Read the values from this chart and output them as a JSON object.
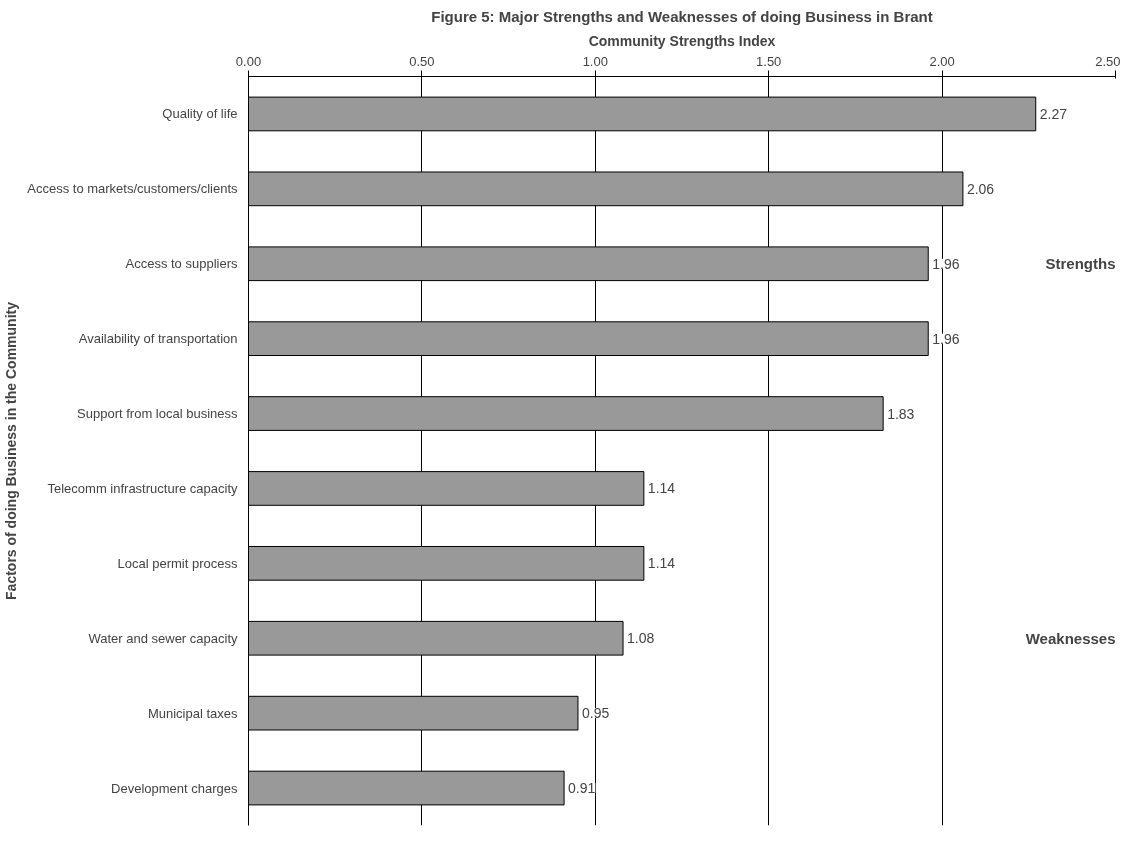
{
  "chart_data": {
    "type": "bar",
    "orientation": "horizontal",
    "title": "Figure 5: Major Strengths and Weaknesses of doing Business in Brant",
    "xlabel": "Community Strengths Index",
    "ylabel": "Factors of doing Business in the Community",
    "categories": [
      "Quality of life",
      "Access to markets/customers/clients",
      "Access to suppliers",
      "Availability of transportation",
      "Support from local business",
      "Telecomm infrastructure capacity",
      "Local permit process",
      "Water and sewer capacity",
      "Municipal taxes",
      "Development charges"
    ],
    "values": [
      2.27,
      2.06,
      1.96,
      1.96,
      1.83,
      1.14,
      1.14,
      1.08,
      0.95,
      0.91
    ],
    "color": "#999999",
    "xlim": [
      0,
      2.5
    ],
    "xticks": [
      {
        "value": 0,
        "label": "0.00"
      },
      {
        "value": 0.5,
        "label": "0.50"
      },
      {
        "value": 1,
        "label": "1.00"
      },
      {
        "value": 1.5,
        "label": "1.50"
      },
      {
        "value": 2,
        "label": "2.00"
      },
      {
        "value": 2.5,
        "label": "2.50"
      }
    ],
    "grid": "x",
    "data_labels": true,
    "annotations": [
      "Strengths",
      "Weaknesses"
    ]
  }
}
